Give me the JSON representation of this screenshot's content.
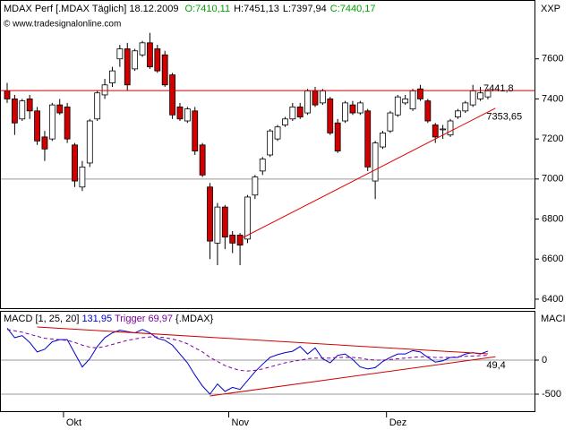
{
  "chart_data": [
    {
      "type": "candlestick",
      "title": "MDAX Perf [.MDAX  Täglich]  18.12.2009",
      "ohlc_labels": [
        {
          "text": "O:7410,11",
          "color": "#00a000"
        },
        {
          "text": "H:7451,13",
          "color": "#000000"
        },
        {
          "text": "L:7397,94",
          "color": "#000000"
        },
        {
          "text": "C:7440,17",
          "color": "#00a000"
        }
      ],
      "watermark": "© www.tradesignalonline.com",
      "axis_label": "XXP",
      "categories": [
        null,
        null,
        null,
        null,
        null,
        null,
        null,
        null,
        "Okt",
        null,
        null,
        null,
        null,
        null,
        null,
        null,
        null,
        null,
        null,
        null,
        null,
        null,
        null,
        null,
        null,
        null,
        null,
        null,
        null,
        null,
        "Nov",
        null,
        null,
        null,
        null,
        null,
        null,
        null,
        null,
        null,
        null,
        null,
        null,
        null,
        null,
        null,
        null,
        null,
        null,
        null,
        null,
        "Dez",
        null,
        null,
        null,
        null,
        null,
        null,
        null,
        null,
        null,
        null,
        null,
        null,
        null
      ],
      "open": [
        7440,
        7400,
        7300,
        7400,
        7340,
        7210,
        7200,
        7370,
        7360,
        7170,
        6960,
        7080,
        7300,
        7420,
        7480,
        7600,
        7650,
        7550,
        7620,
        7680,
        7650,
        7620,
        7520,
        7360,
        7290,
        7340,
        7170,
        6960,
        6680,
        6860,
        6720,
        6720,
        6700,
        6920,
        7040,
        7120,
        7200,
        7270,
        7300,
        7360,
        7330,
        7440,
        7380,
        7400,
        7280,
        7290,
        7370,
        7330,
        7340,
        6990,
        7160,
        7240,
        7320,
        7380,
        7350,
        7450,
        7390,
        7270,
        7250,
        7220,
        7310,
        7340,
        7370,
        7400,
        7410.11
      ],
      "high": [
        7480,
        7420,
        7400,
        7420,
        7360,
        7240,
        7380,
        7400,
        7380,
        7180,
        7090,
        7300,
        7440,
        7500,
        7560,
        7670,
        7680,
        7650,
        7690,
        7730,
        7670,
        7640,
        7530,
        7380,
        7360,
        7360,
        7180,
        6980,
        6880,
        6870,
        6740,
        6730,
        6920,
        7020,
        7110,
        7250,
        7270,
        7310,
        7380,
        7380,
        7450,
        7460,
        7450,
        7410,
        7300,
        7390,
        7390,
        7390,
        7350,
        7190,
        7240,
        7340,
        7420,
        7420,
        7450,
        7470,
        7400,
        7280,
        7270,
        7300,
        7350,
        7390,
        7470,
        7460,
        7451.13
      ],
      "low": [
        7380,
        7220,
        7290,
        7300,
        7170,
        7090,
        7190,
        7320,
        7180,
        6960,
        6940,
        7060,
        7290,
        7400,
        7460,
        7560,
        7440,
        7540,
        7610,
        7550,
        7530,
        7460,
        7300,
        7290,
        7280,
        7120,
        7010,
        6600,
        6570,
        6650,
        6630,
        6570,
        6680,
        6900,
        7020,
        7110,
        7190,
        7260,
        7290,
        7300,
        7320,
        7360,
        7370,
        7220,
        7130,
        7280,
        7320,
        7320,
        7040,
        6900,
        7150,
        7230,
        7310,
        7370,
        7340,
        7390,
        7280,
        7180,
        7200,
        7210,
        7300,
        7330,
        7360,
        7390,
        7397.94
      ],
      "close": [
        7400,
        7280,
        7390,
        7340,
        7190,
        7150,
        7370,
        7330,
        7200,
        6990,
        7060,
        7290,
        7430,
        7470,
        7540,
        7650,
        7470,
        7640,
        7680,
        7560,
        7540,
        7470,
        7320,
        7300,
        7350,
        7140,
        7020,
        6690,
        6860,
        6710,
        6680,
        6670,
        6910,
        7010,
        7100,
        7240,
        7260,
        7300,
        7360,
        7310,
        7440,
        7370,
        7440,
        7230,
        7140,
        7380,
        7330,
        7380,
        7060,
        7180,
        7230,
        7330,
        7410,
        7400,
        7440,
        7400,
        7290,
        7210,
        7250,
        7290,
        7340,
        7380,
        7440,
        7430,
        7440.17
      ],
      "up_color": "#ffffff",
      "down_color": "#d00000",
      "ylim": [
        6355,
        7885
      ],
      "yticks": [
        6400,
        6600,
        6800,
        7000,
        7200,
        7400,
        7600
      ],
      "grid_values": [
        7000
      ],
      "levels": [
        {
          "value": 7441.8,
          "label": "7441,8",
          "color": "#d00000"
        }
      ],
      "trendlines": [
        {
          "x": [
            31,
            65
          ],
          "y": [
            6700,
            7353.65
          ],
          "label": "7353,65",
          "color": "#e00000"
        }
      ]
    },
    {
      "type": "line",
      "title": "MACD [1, 25, 20]",
      "symbol": "{.MDAX}",
      "axis_label": "MACI",
      "series": [
        {
          "name": "131,95",
          "color": "#0000cc",
          "dashed": false,
          "values": [
            470,
            330,
            360,
            260,
            120,
            160,
            270,
            300,
            300,
            100,
            -100,
            20,
            200,
            330,
            400,
            440,
            420,
            400,
            450,
            400,
            320,
            290,
            220,
            90,
            -40,
            -220,
            -380,
            -500,
            -350,
            -460,
            -400,
            -430,
            -300,
            -170,
            -60,
            40,
            80,
            110,
            130,
            200,
            90,
            180,
            20,
            -40,
            70,
            90,
            10,
            -100,
            -130,
            -110,
            -20,
            40,
            90,
            90,
            140,
            120,
            40,
            -30,
            -10,
            40,
            40,
            90,
            110,
            90,
            131.95
          ]
        },
        {
          "name": "Trigger 69,97",
          "color": "#8000a0",
          "dashed": true,
          "values": [
            450,
            430,
            410,
            380,
            350,
            320,
            310,
            300,
            290,
            260,
            220,
            190,
            180,
            200,
            230,
            260,
            290,
            310,
            330,
            340,
            340,
            330,
            310,
            280,
            240,
            180,
            120,
            40,
            -20,
            -80,
            -120,
            -150,
            -160,
            -150,
            -130,
            -100,
            -70,
            -40,
            -20,
            0,
            20,
            30,
            30,
            30,
            40,
            40,
            40,
            30,
            10,
            0,
            0,
            10,
            20,
            30,
            40,
            50,
            50,
            40,
            40,
            40,
            50,
            55,
            60,
            65,
            69.97
          ]
        }
      ],
      "ylim": [
        -763,
        697
      ],
      "yticks": [
        0,
        -500
      ],
      "grid_values": [
        0,
        -500
      ],
      "trendlines": [
        {
          "x": [
            4,
            64
          ],
          "y": [
            487,
            92
          ],
          "color": "#d00000"
        },
        {
          "x": [
            27,
            65
          ],
          "y": [
            -526,
            49.4
          ],
          "label": "49,4",
          "color": "#d00000"
        }
      ]
    }
  ]
}
